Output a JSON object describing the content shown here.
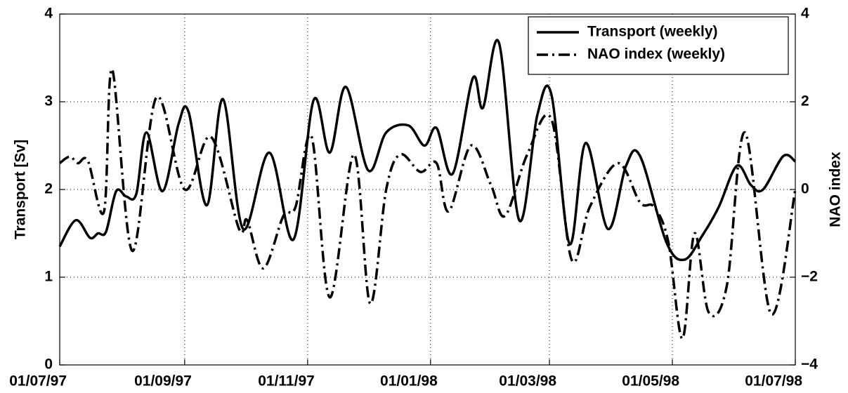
{
  "chart_data": {
    "type": "line",
    "ylabel": "Transport [Sv]",
    "y2label": "NAO index",
    "xlim": [
      "01/07/97",
      "01/07/98"
    ],
    "xticks": [
      "01/07/97",
      "01/09/97",
      "01/11/97",
      "01/01/98",
      "01/03/98",
      "01/05/98",
      "01/07/98"
    ],
    "ylim": [
      0,
      4
    ],
    "yticks": [
      0,
      1,
      2,
      3,
      4
    ],
    "y2lim": [
      -4,
      4
    ],
    "y2ticks": [
      {
        "value": -4,
        "label": "−4"
      },
      {
        "value": -2,
        "label": "−2"
      },
      0,
      2,
      4
    ],
    "grid": true,
    "legend": "upper right",
    "series": [
      {
        "name": "Transport (weekly)",
        "color": "#000000",
        "style": "solid",
        "x": [
          "01/07/97",
          "09/07/97",
          "16/07/97",
          "20/07/97",
          "24/07/97",
          "29/07/97",
          "03/08/97",
          "08/08/97",
          "13/08/97",
          "21/08/97",
          "29/08/97",
          "03/09/97",
          "12/09/97",
          "20/09/97",
          "30/09/97",
          "13/10/97",
          "25/10/97",
          "04/11/97",
          "12/11/97",
          "20/11/97",
          "01/12/97",
          "10/12/97",
          "21/12/97",
          "29/12/97",
          "04/01/98",
          "12/01/98",
          "22/01/98",
          "27/01/98",
          "04/02/98",
          "14/02/98",
          "23/02/98",
          "02/03/98",
          "11/03/98",
          "19/03/98",
          "30/03/98",
          "08/04/98",
          "15/04/98",
          "28/04/98",
          "07/05/98",
          "16/05/98",
          "24/05/98",
          "02/06/98",
          "09/06/98",
          "15/06/98",
          "25/06/98",
          "01/07/98"
        ],
        "values": [
          1.35,
          1.65,
          1.45,
          1.5,
          1.52,
          1.98,
          1.92,
          1.95,
          2.65,
          1.98,
          2.75,
          2.88,
          1.82,
          3.03,
          1.55,
          2.42,
          1.43,
          3.02,
          2.42,
          3.17,
          2.22,
          2.65,
          2.73,
          2.5,
          2.7,
          2.18,
          3.27,
          2.93,
          3.67,
          1.65,
          2.85,
          3.08,
          1.38,
          2.53,
          1.55,
          2.27,
          2.38,
          1.4,
          1.2,
          1.48,
          1.8,
          2.27,
          2.05,
          2.0,
          2.38,
          2.32
        ]
      },
      {
        "name": "NAO index (weekly)",
        "color": "#000000",
        "style": "dashdot",
        "axis": "y2",
        "x": [
          "01/07/97",
          "06/07/97",
          "10/07/97",
          "15/07/97",
          "23/07/97",
          "27/07/97",
          "06/08/97",
          "18/08/97",
          "01/09/97",
          "14/09/97",
          "28/09/97",
          "02/10/97",
          "10/10/97",
          "20/10/97",
          "26/10/97",
          "03/11/97",
          "12/11/97",
          "24/11/97",
          "02/12/97",
          "10/12/97",
          "17/12/97",
          "27/12/97",
          "04/01/98",
          "10/01/98",
          "21/01/98",
          "31/01/98",
          "07/02/98",
          "18/02/98",
          "02/03/98",
          "12/03/98",
          "21/03/98",
          "04/04/98",
          "15/04/98",
          "22/04/98",
          "29/04/98",
          "06/05/98",
          "12/05/98",
          "19/05/98",
          "28/05/98",
          "06/06/98",
          "19/06/98",
          "01/07/98"
        ],
        "values": [
          0.6,
          0.75,
          0.6,
          0.65,
          -0.5,
          2.74,
          -1.4,
          2.1,
          0.0,
          1.2,
          -0.9,
          -0.7,
          -1.8,
          -0.6,
          -0.4,
          1.2,
          -2.46,
          0.8,
          -2.6,
          0.0,
          0.8,
          0.4,
          0.6,
          -0.5,
          1.0,
          0.1,
          -0.6,
          0.8,
          1.6,
          -1.6,
          -0.4,
          0.6,
          -0.3,
          -0.4,
          -1.2,
          -3.4,
          -1.0,
          -2.8,
          -2.2,
          1.3,
          -2.84,
          0.0
        ]
      }
    ]
  }
}
